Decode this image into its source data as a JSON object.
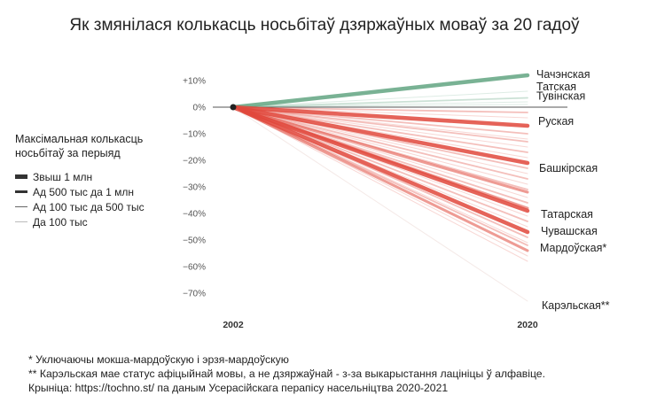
{
  "chart_data": {
    "type": "line",
    "title": "Як змянілася колькасць носьбітаў дзяржаўных моваў за 20 гадоў",
    "x": [
      "2002",
      "2020"
    ],
    "y_ticks": [
      "+10%",
      "0%",
      "−10%",
      "−20%",
      "−30%",
      "−40%",
      "−50%",
      "−60%",
      "−70%"
    ],
    "ylim": [
      -72,
      15
    ],
    "legend": {
      "title": "Максімальная колькасць носьбітаў за перыяд",
      "items": [
        {
          "label": "Звыш 1 млн",
          "tier": 4
        },
        {
          "label": "Ад 500 тыс да 1 млн",
          "tier": 3
        },
        {
          "label": "Ад 100 тыс да 500 тыс",
          "tier": 2
        },
        {
          "label": "Да 100 тыс",
          "tier": 1
        }
      ],
      "placement": "left"
    },
    "colors": {
      "growth": "#6aaa88",
      "decline": "#e0483c",
      "baseline": "#555555"
    },
    "labeled_series": [
      {
        "name": "Чачэнская",
        "change": 12,
        "tier": 4,
        "label_offset": -1
      },
      {
        "name": "Татская",
        "change": 6,
        "tier": 1,
        "label_offset": -5
      },
      {
        "name": "Тувінская",
        "change": 3.5,
        "tier": 2,
        "label_offset": -2
      },
      {
        "name": "Руская",
        "change": -7,
        "tier": 4,
        "label_offset": -5
      },
      {
        "name": "Башкірская",
        "change": -21,
        "tier": 4,
        "label_offset": 6
      },
      {
        "name": "Татарская",
        "change": -39,
        "tier": 4,
        "label_offset": 4
      },
      {
        "name": "Чувашская",
        "change": -47,
        "tier": 4,
        "label_offset": -1
      },
      {
        "name": "Мардоўская*",
        "change": -54,
        "tier": 3,
        "label_offset": -3
      },
      {
        "name": "Карэльская**",
        "change": -73,
        "tier": 1,
        "label_offset": 0
      }
    ],
    "other_series": [
      {
        "change": 2,
        "tier": 1
      },
      {
        "change": 1,
        "tier": 1
      },
      {
        "change": -2,
        "tier": 2
      },
      {
        "change": -4,
        "tier": 1
      },
      {
        "change": -10,
        "tier": 2
      },
      {
        "change": -12,
        "tier": 1
      },
      {
        "change": -13,
        "tier": 2
      },
      {
        "change": -15,
        "tier": 1
      },
      {
        "change": -17,
        "tier": 2
      },
      {
        "change": -19,
        "tier": 1
      },
      {
        "change": -23,
        "tier": 2
      },
      {
        "change": -25,
        "tier": 1
      },
      {
        "change": -27,
        "tier": 2
      },
      {
        "change": -29,
        "tier": 1
      },
      {
        "change": -31,
        "tier": 2
      },
      {
        "change": -32,
        "tier": 3
      },
      {
        "change": -34,
        "tier": 1
      },
      {
        "change": -36,
        "tier": 2
      },
      {
        "change": -38,
        "tier": 3
      },
      {
        "change": -41,
        "tier": 1
      },
      {
        "change": -43,
        "tier": 2
      },
      {
        "change": -45,
        "tier": 1
      },
      {
        "change": -49,
        "tier": 2
      },
      {
        "change": -51,
        "tier": 1
      },
      {
        "change": -52,
        "tier": 2
      },
      {
        "change": -56,
        "tier": 1
      },
      {
        "change": -58,
        "tier": 1
      }
    ]
  },
  "footnotes": [
    "* Уключаючы мокша-мардоўскую і эрзя-мардоўскую",
    "** Карэльская мае статус афіцыйнай мовы, а не дзяржаўнай - з-за выкарыстання лацініцы ў алфавіце.",
    "Крыніца: https://tochno.st/ па даным Усерасійскага перапісу насельніцтва 2020-2021"
  ]
}
